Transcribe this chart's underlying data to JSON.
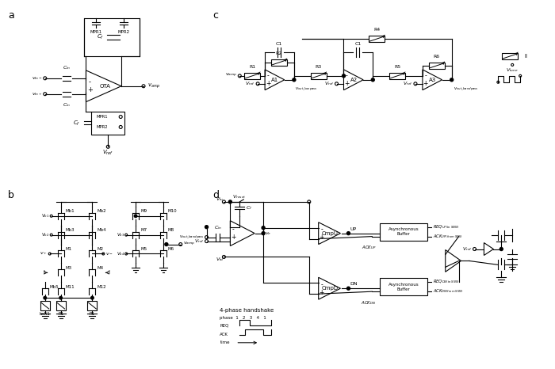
{
  "bg": "#ffffff",
  "lc": "#000000",
  "panel_labels": [
    "a",
    "b",
    "c",
    "d"
  ]
}
